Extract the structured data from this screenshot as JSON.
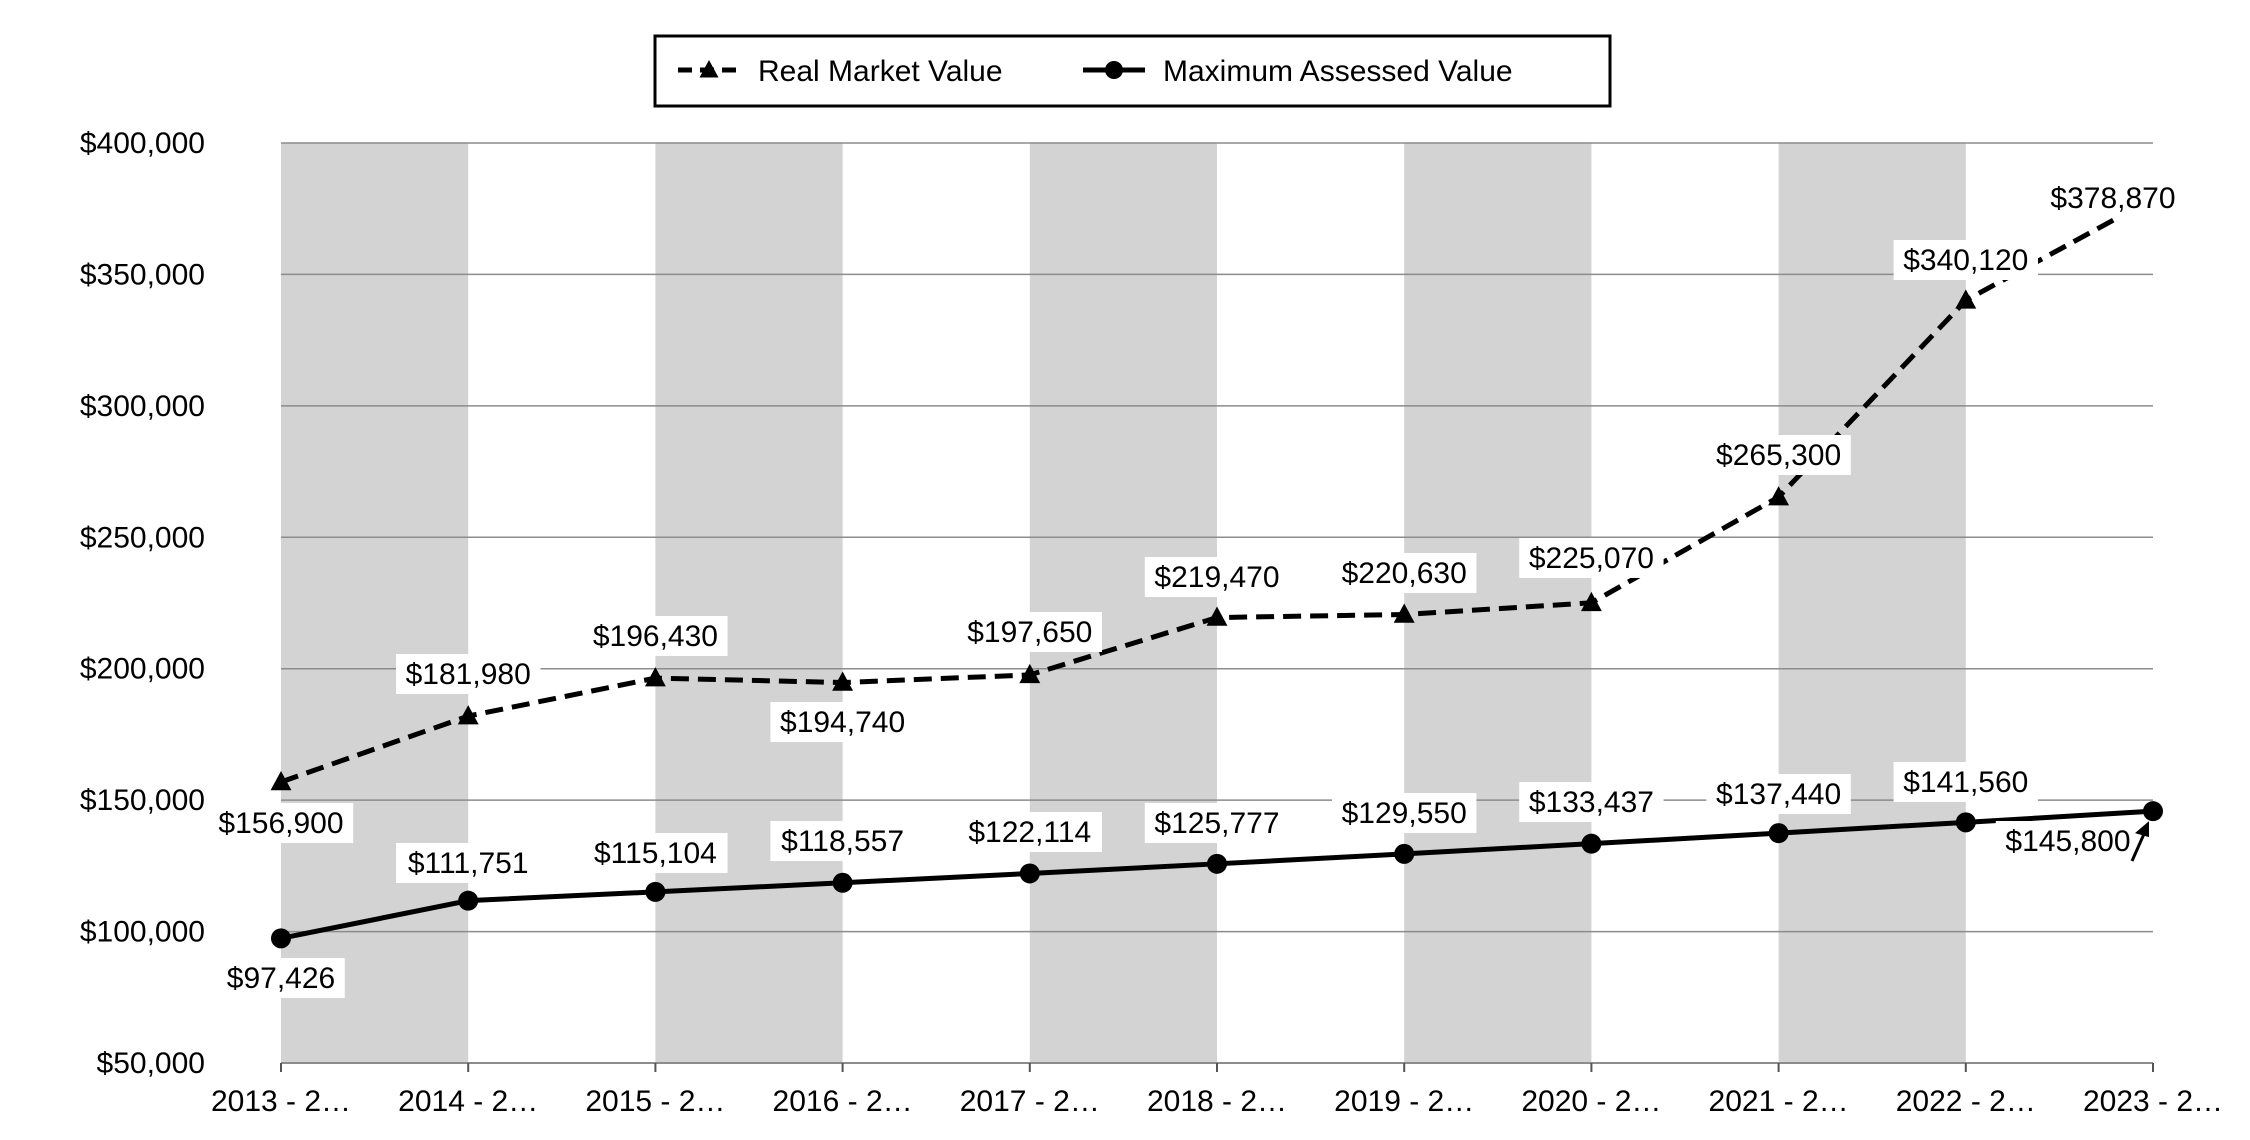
{
  "chart_data": {
    "type": "line",
    "categories": [
      "2013 - 2…",
      "2014 - 2…",
      "2015 - 2…",
      "2016 - 2…",
      "2017 - 2…",
      "2018 - 2…",
      "2019 - 2…",
      "2020 - 2…",
      "2021 - 2…",
      "2022 - 2…",
      "2023 - 2…"
    ],
    "series": [
      {
        "name": "Real Market Value",
        "values": [
          156900,
          181980,
          196430,
          194740,
          197650,
          219470,
          220630,
          225070,
          265300,
          340120,
          378870
        ],
        "labels": [
          "$156,900",
          "$181,980",
          "$196,430",
          "$194,740",
          "$197,650",
          "$219,470",
          "$220,630",
          "$225,070",
          "$265,300",
          "$340,120",
          "$378,870"
        ],
        "color": "#000000",
        "line_style": "dashed",
        "marker": "triangle"
      },
      {
        "name": "Maximum Assessed Value",
        "values": [
          97426,
          111751,
          115104,
          118557,
          122114,
          125777,
          129550,
          133437,
          137440,
          141560,
          145800
        ],
        "labels": [
          "$97,426",
          "$111,751",
          "$115,104",
          "$118,557",
          "$122,114",
          "$125,777",
          "$129,550",
          "$133,437",
          "$137,440",
          "$141,560",
          "$145,800"
        ],
        "color": "#000000",
        "line_style": "solid",
        "marker": "circle"
      }
    ],
    "ylim": [
      50000,
      400000
    ],
    "yticks": [
      50000,
      100000,
      150000,
      200000,
      250000,
      300000,
      350000,
      400000
    ],
    "ytick_labels": [
      "$50,000",
      "$100,000",
      "$150,000",
      "$200,000",
      "$250,000",
      "$300,000",
      "$350,000",
      "$400,000"
    ],
    "grid": true,
    "band_color": "#d3d3d3",
    "legend_position": "top-center",
    "title": "",
    "xlabel": "",
    "ylabel": ""
  }
}
